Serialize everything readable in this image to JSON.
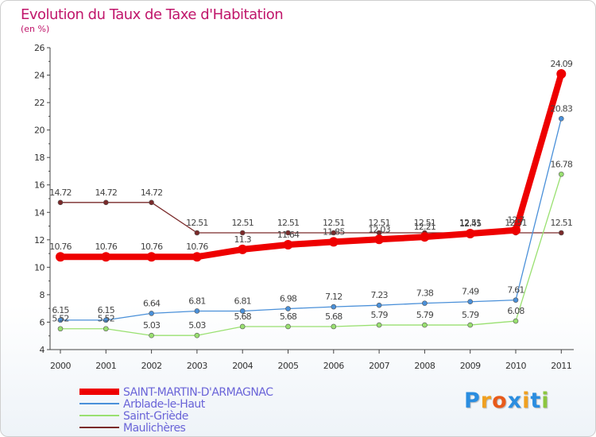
{
  "chart_data": {
    "type": "line",
    "title": "Evolution du Taux de Taxe d'Habitation",
    "subtitle": "(en %)",
    "x": [
      2000,
      2001,
      2002,
      2003,
      2004,
      2005,
      2006,
      2007,
      2008,
      2009,
      2010,
      2011
    ],
    "ylim": [
      4,
      26
    ],
    "yticks": [
      4,
      6,
      8,
      10,
      12,
      14,
      16,
      18,
      20,
      22,
      24,
      26
    ],
    "grid": false,
    "legend_position": "bottom-left",
    "series": [
      {
        "name": "SAINT-MARTIN-D'ARMAGNAC",
        "color": "#ee0000",
        "emphasis": true,
        "values": [
          10.76,
          10.76,
          10.76,
          10.76,
          11.3,
          11.64,
          11.85,
          12.03,
          12.21,
          12.45,
          12.7,
          24.09
        ],
        "labels": [
          "10.76",
          "10.76",
          "10.76",
          "10.76",
          "11.3",
          "11.64",
          "11.85",
          "12.03",
          "12.21",
          "12.45",
          "12.7",
          "24.09"
        ]
      },
      {
        "name": "Arblade-le-Haut",
        "color": "#4a90d9",
        "emphasis": false,
        "values": [
          6.15,
          6.15,
          6.64,
          6.81,
          6.81,
          6.98,
          7.12,
          7.23,
          7.38,
          7.49,
          7.61,
          20.83
        ],
        "labels": [
          "6.15",
          "6.15",
          "6.64",
          "6.81",
          "6.81",
          "6.98",
          "7.12",
          "7.23",
          "7.38",
          "7.49",
          "7.61",
          "20.83"
        ]
      },
      {
        "name": "Saint-Griède",
        "color": "#99e070",
        "emphasis": false,
        "values": [
          5.52,
          5.52,
          5.03,
          5.03,
          5.68,
          5.68,
          5.68,
          5.79,
          5.79,
          5.79,
          6.08,
          16.78
        ],
        "labels": [
          "5.52",
          "5.52",
          "5.03",
          "5.03",
          "5.68",
          "5.68",
          "5.68",
          "5.79",
          "5.79",
          "5.79",
          "6.08",
          "16.78"
        ]
      },
      {
        "name": "Maulichères",
        "color": "#7a2a2a",
        "emphasis": false,
        "values": [
          14.72,
          14.72,
          14.72,
          12.51,
          12.51,
          12.51,
          12.51,
          12.51,
          12.51,
          12.51,
          12.51,
          12.51
        ],
        "labels": [
          "14.72",
          "14.72",
          "14.72",
          "12.51",
          "12.51",
          "12.51",
          "12.51",
          "12.51",
          "12.51",
          "12.51",
          "12.51",
          "12.51"
        ]
      }
    ]
  },
  "logo": {
    "letters": [
      "P",
      "r",
      "o",
      "x",
      "i",
      "t",
      "i"
    ],
    "colors": [
      "#2a8de0",
      "#f0a020",
      "#e85a1a",
      "#2a8de0",
      "#f0a020",
      "#2a8de0",
      "#8cc63f"
    ]
  }
}
